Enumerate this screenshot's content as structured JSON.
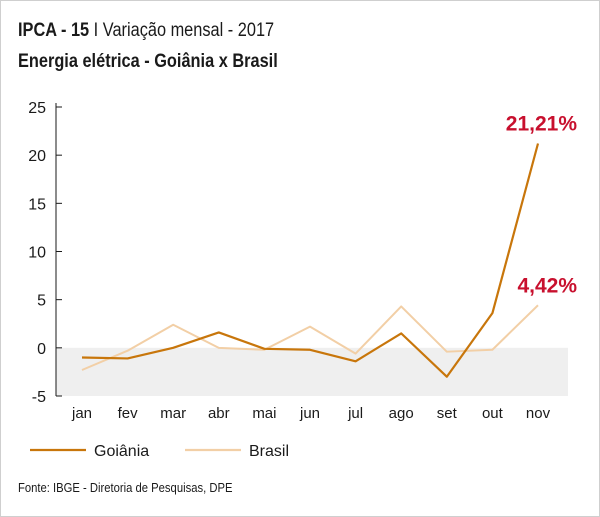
{
  "title": {
    "part1": "IPCA - 15",
    "part2": " I Variação mensal - 2017",
    "subtitle": "Energia elétrica - Goiânia x Brasil"
  },
  "source": "Fonte: IBGE - Diretoria de Pesquisas, DPE",
  "colors": {
    "goiania": "#c8760b",
    "brasil": "#f2cfa6",
    "negative_band": "#efefef",
    "annotation": "#c8102e",
    "axis": "#1a1a1a"
  },
  "chart_data": {
    "type": "line",
    "categories": [
      "jan",
      "fev",
      "mar",
      "abr",
      "mai",
      "jun",
      "jul",
      "ago",
      "set",
      "out",
      "nov"
    ],
    "ylim": [
      -5,
      25
    ],
    "yticks": [
      -5,
      0,
      5,
      10,
      15,
      20,
      25
    ],
    "grid": false,
    "legend_position": "bottom-left",
    "series": [
      {
        "name": "Goiânia",
        "values": [
          -1.0,
          -1.1,
          0.0,
          1.6,
          -0.1,
          -0.2,
          -1.4,
          1.5,
          -3.0,
          3.6,
          21.21
        ]
      },
      {
        "name": "Brasil",
        "values": [
          -2.3,
          -0.3,
          2.4,
          0.0,
          -0.2,
          2.2,
          -0.6,
          4.3,
          -0.4,
          -0.2,
          4.42
        ]
      }
    ],
    "annotations": [
      {
        "text": "21,21%",
        "series": "Goiânia",
        "category": "nov"
      },
      {
        "text": "4,42%",
        "series": "Brasil",
        "category": "nov"
      }
    ]
  }
}
